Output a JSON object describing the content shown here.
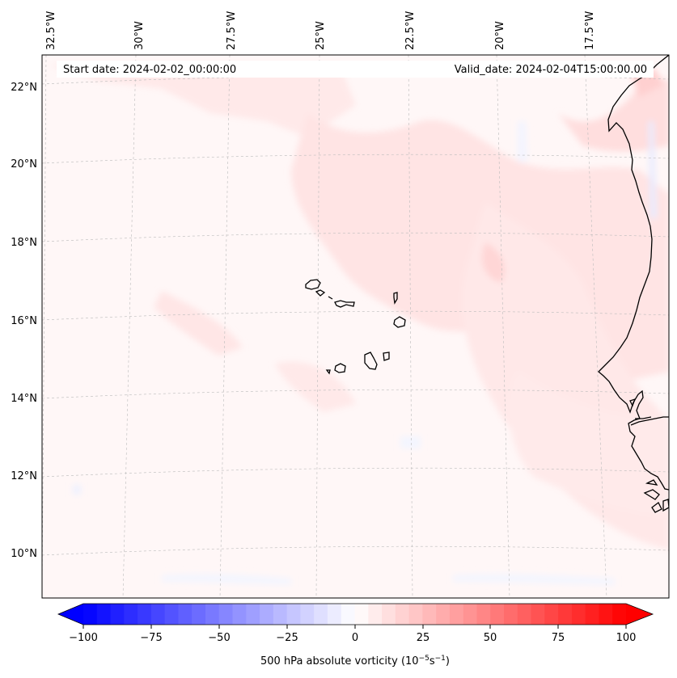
{
  "header": {
    "start_date": "Start date: 2024-02-02_00:00:00",
    "valid_date": "Valid_date: 2024-02-04T15:00:00.00"
  },
  "longitude_labels": [
    "32.5°W",
    "30°W",
    "27.5°W",
    "25°W",
    "22.5°W",
    "20°W",
    "17.5°W"
  ],
  "latitude_labels": [
    "22°N",
    "20°N",
    "18°N",
    "16°N",
    "14°N",
    "12°N",
    "10°N"
  ],
  "colorbar": {
    "label_prefix": "500 hPa absolute vorticity (10",
    "label_exp1": "−5",
    "label_mid": "s",
    "label_exp2": "−1",
    "label_suffix": ")",
    "ticks": [
      "−100",
      "−75",
      "−50",
      "−25",
      "0",
      "25",
      "50",
      "75",
      "100"
    ],
    "min": -100,
    "max": 100,
    "colors": {
      "negative": "#0000ff",
      "neutral": "#ffffff",
      "positive": "#ff0000"
    }
  }
}
